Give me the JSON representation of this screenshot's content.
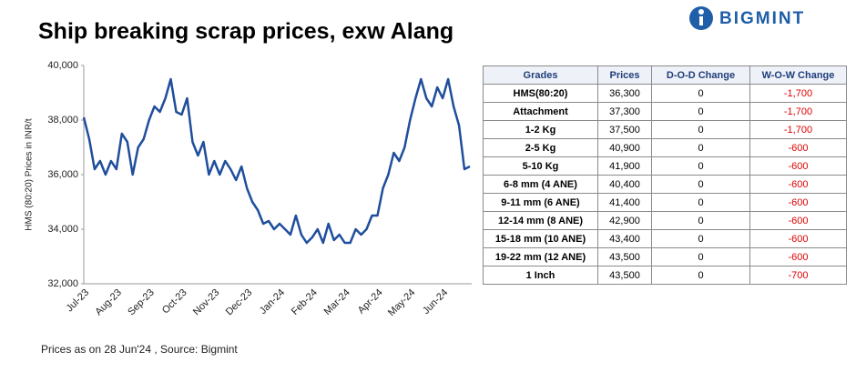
{
  "header": {
    "title": "Ship breaking scrap prices, exw Alang",
    "brand": "BIGMINT"
  },
  "chart_data": {
    "type": "line",
    "y_label": "HMS (80:20) Prices in INR/t",
    "categories": [
      "Jul-23",
      null,
      null,
      null,
      null,
      null,
      "Aug-23",
      null,
      null,
      null,
      null,
      null,
      "Sep-23",
      null,
      null,
      null,
      null,
      null,
      "Oct-23",
      null,
      null,
      null,
      null,
      null,
      "Nov-23",
      null,
      null,
      null,
      null,
      null,
      "Dec-23",
      null,
      null,
      null,
      null,
      null,
      "Jan-24",
      null,
      null,
      null,
      null,
      null,
      "Feb-24",
      null,
      null,
      null,
      null,
      null,
      "Mar-24",
      null,
      null,
      null,
      null,
      null,
      "Apr-24",
      null,
      null,
      null,
      null,
      null,
      "May-24",
      null,
      null,
      null,
      null,
      null,
      "Jun-24",
      null,
      null,
      null,
      null,
      null
    ],
    "series": [
      {
        "name": "HMS (80:20)",
        "color": "#1f4e9c",
        "values": [
          38100,
          37300,
          36200,
          36500,
          36000,
          36500,
          36200,
          37500,
          37200,
          36000,
          37000,
          37300,
          38000,
          38500,
          38300,
          38800,
          39500,
          38300,
          38200,
          38800,
          37200,
          36700,
          37200,
          36000,
          36500,
          36000,
          36500,
          36200,
          35800,
          36300,
          35500,
          35000,
          34700,
          34200,
          34300,
          34000,
          34200,
          34000,
          33800,
          34500,
          33800,
          33500,
          33700,
          34000,
          33500,
          34200,
          33600,
          33800,
          33500,
          33500,
          34000,
          33800,
          34000,
          34500,
          34500,
          35500,
          36000,
          36800,
          36500,
          37000,
          38000,
          38800,
          39500,
          38800,
          38500,
          39200,
          38800,
          39500,
          38500,
          37800,
          36200,
          36300
        ]
      }
    ],
    "ylim": [
      32000,
      40000
    ],
    "yticks": [
      {
        "value": 32000,
        "label": "32,000"
      },
      {
        "value": 34000,
        "label": "34,000"
      },
      {
        "value": 36000,
        "label": "36,000"
      },
      {
        "value": 38000,
        "label": "38,000"
      },
      {
        "value": 40000,
        "label": "40,000"
      }
    ],
    "grid": false
  },
  "table": {
    "columns": [
      "Grades",
      "Prices",
      "D-O-D Change",
      "W-O-W Change"
    ],
    "rows": [
      [
        "HMS(80:20)",
        "36,300",
        "0",
        "-1,700"
      ],
      [
        "Attachment",
        "37,300",
        "0",
        "-1,700"
      ],
      [
        "1-2 Kg",
        "37,500",
        "0",
        "-1,700"
      ],
      [
        "2-5 Kg",
        "40,900",
        "0",
        "-600"
      ],
      [
        "5-10 Kg",
        "41,900",
        "0",
        "-600"
      ],
      [
        "6-8 mm (4 ANE)",
        "40,400",
        "0",
        "-600"
      ],
      [
        "9-11 mm (6 ANE)",
        "41,400",
        "0",
        "-600"
      ],
      [
        "12-14 mm (8 ANE)",
        "42,900",
        "0",
        "-600"
      ],
      [
        "15-18 mm (10 ANE)",
        "43,400",
        "0",
        "-600"
      ],
      [
        "19-22 mm (12 ANE)",
        "43,500",
        "0",
        "-600"
      ],
      [
        "1 Inch",
        "43,500",
        "0",
        "-700"
      ]
    ]
  },
  "footer": {
    "note": "Prices as on 28 Jun'24 , Source:  Bigmint"
  }
}
